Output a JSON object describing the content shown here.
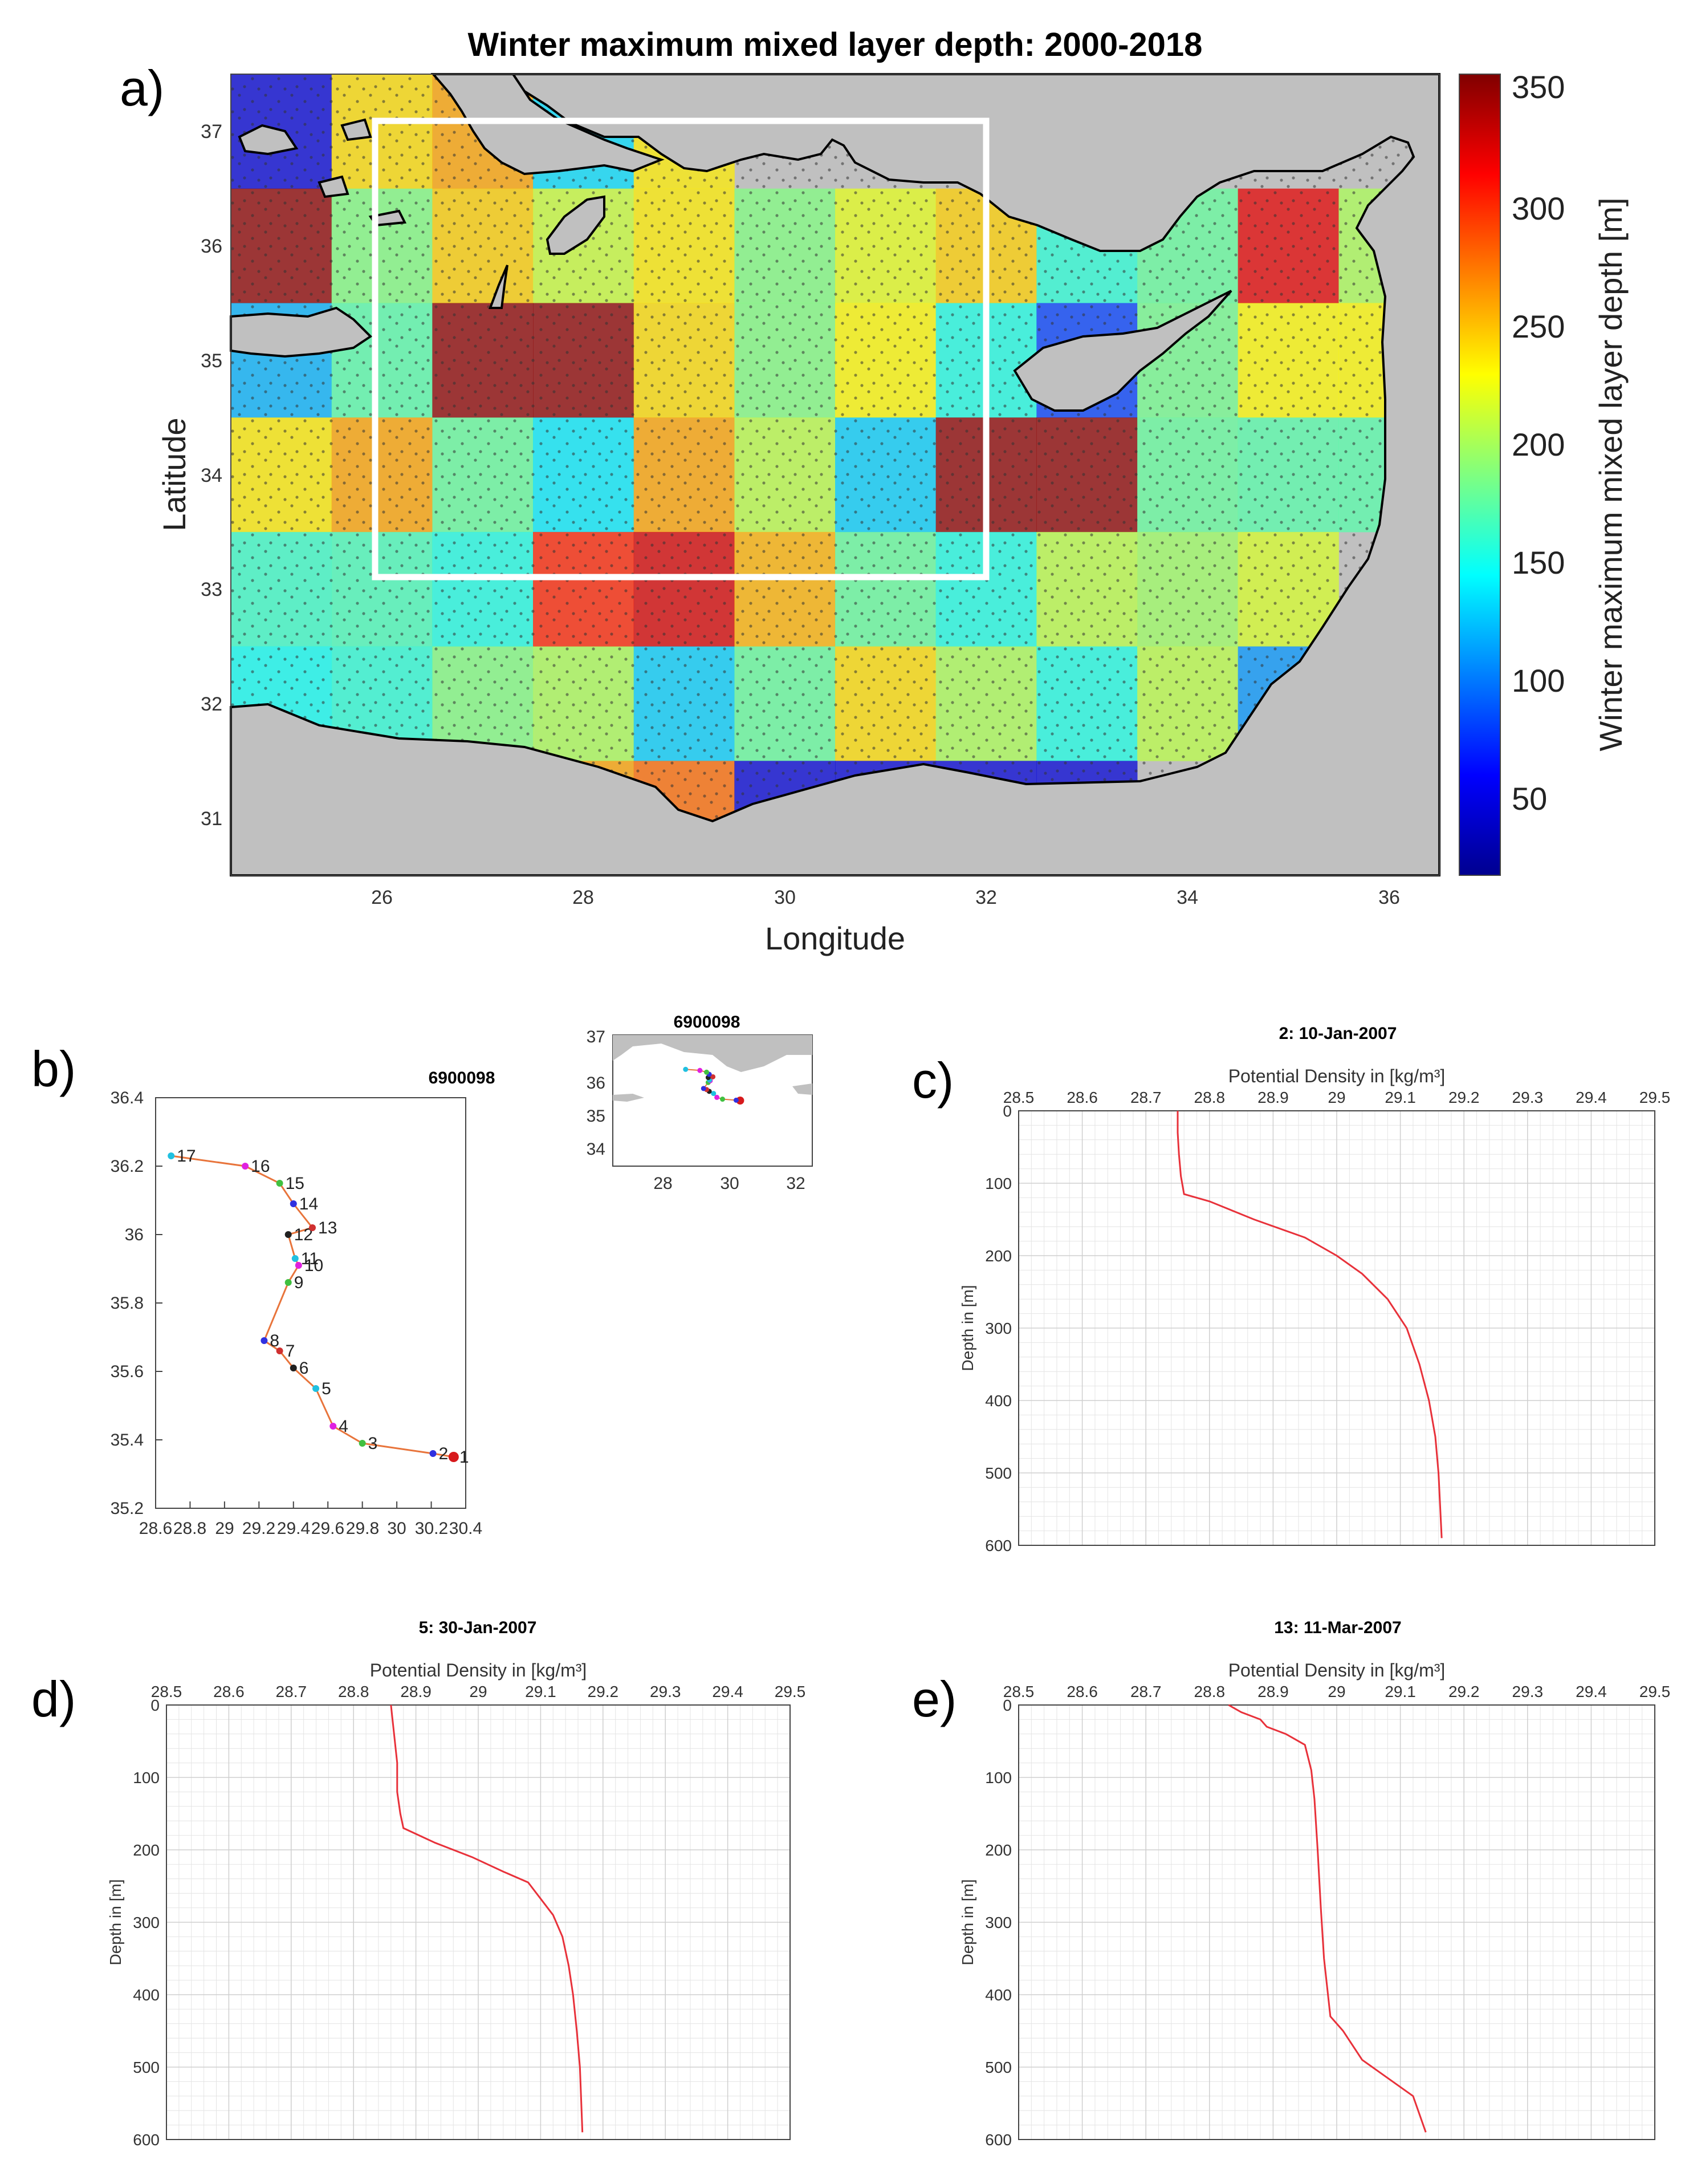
{
  "panel_a": {
    "label": "a)",
    "title": "Winter maximum mixed layer depth:   2000-2018",
    "xlabel": "Longitude",
    "ylabel": "Latitude",
    "colorbar_label": "Winter maximum mixed layer depth [m]",
    "colorbar_ticks": [
      "50",
      "100",
      "150",
      "200",
      "250",
      "300",
      "350"
    ],
    "xtick_labels": [
      "26",
      "28",
      "30",
      "32",
      "34",
      "36"
    ],
    "ytick_labels": [
      "31",
      "32",
      "33",
      "34",
      "35",
      "36",
      "37"
    ]
  },
  "panel_b": {
    "label": "b)",
    "title": "6900098",
    "inset_title": "6900098",
    "inset_xtick_labels": [
      "28",
      "30",
      "32"
    ],
    "inset_ytick_labels": [
      "34",
      "35",
      "36",
      "37"
    ],
    "xtick_labels": [
      "28.6",
      "28.8",
      "29",
      "29.2",
      "29.4",
      "29.6",
      "29.8",
      "30",
      "30.2",
      "30.4"
    ],
    "ytick_labels": [
      "35.2",
      "35.4",
      "35.6",
      "35.8",
      "36",
      "36.2",
      "36.4"
    ]
  },
  "profile_axes": {
    "xlabel": "Potential Density in [kg/m³]",
    "ylabel": "Depth in [m]",
    "xtick_labels": [
      "28.5",
      "28.6",
      "28.7",
      "28.8",
      "28.9",
      "29",
      "29.1",
      "29.2",
      "29.3",
      "29.4",
      "29.5"
    ],
    "ytick_labels": [
      "0",
      "100",
      "200",
      "300",
      "400",
      "500",
      "600"
    ]
  },
  "panel_c": {
    "label": "c)",
    "title": "2: 10-Jan-2007"
  },
  "panel_d": {
    "label": "d)",
    "title": "5: 30-Jan-2007"
  },
  "panel_e": {
    "label": "e)",
    "title": "13: 11-Mar-2007"
  },
  "chart_data": [
    {
      "type": "heatmap",
      "title": "Winter maximum mixed layer depth:   2000-2018",
      "xlabel": "Longitude",
      "ylabel": "Latitude",
      "xlim": [
        24.5,
        36.5
      ],
      "ylim": [
        30.5,
        37.5
      ],
      "clim": [
        0,
        350
      ],
      "colorbar_label": "Winter maximum mixed layer depth [m]",
      "lon_edges": [
        24.5,
        25.5,
        26.5,
        27.5,
        28.5,
        29.5,
        30.5,
        31.5,
        32.5,
        33.5,
        34.5,
        35.5,
        36.5
      ],
      "lat_edges": [
        37.5,
        36.5,
        35.5,
        34.5,
        33.5,
        32.5,
        31.5,
        30.5
      ],
      "cells": [
        [
          30,
          230,
          250,
          120,
          225,
          null,
          null,
          null,
          null,
          null,
          null,
          null
        ],
        [
          345,
          175,
          235,
          200,
          225,
          175,
          210,
          235,
          145,
          165,
          315,
          190
        ],
        [
          105,
          160,
          345,
          345,
          230,
          175,
          220,
          140,
          65,
          170,
          220,
          220
        ],
        [
          225,
          250,
          165,
          125,
          250,
          195,
          115,
          345,
          345,
          165,
          160,
          160
        ],
        [
          150,
          155,
          140,
          295,
          320,
          245,
          165,
          140,
          195,
          185,
          205,
          null
        ],
        [
          135,
          145,
          175,
          190,
          115,
          165,
          230,
          190,
          140,
          195,
          95,
          null
        ],
        [
          null,
          null,
          null,
          250,
          270,
          30,
          30,
          30,
          30,
          null,
          null,
          null
        ]
      ],
      "study_box": {
        "lon": [
          26,
          32
        ],
        "lat": [
          33.2,
          37.1
        ]
      }
    },
    {
      "type": "line",
      "title": "6900098",
      "xlim": [
        28.6,
        30.4
      ],
      "ylim": [
        35.2,
        36.4
      ],
      "points": [
        {
          "n": "1",
          "lon": 30.33,
          "lat": 35.35,
          "color": "#d7191c"
        },
        {
          "n": "2",
          "lon": 30.21,
          "lat": 35.36,
          "color": "#3030e0"
        },
        {
          "n": "3",
          "lon": 29.8,
          "lat": 35.39,
          "color": "#40c040"
        },
        {
          "n": "4",
          "lon": 29.63,
          "lat": 35.44,
          "color": "#e020e0"
        },
        {
          "n": "5",
          "lon": 29.53,
          "lat": 35.55,
          "color": "#20c0e0"
        },
        {
          "n": "6",
          "lon": 29.4,
          "lat": 35.61,
          "color": "#202020"
        },
        {
          "n": "7",
          "lon": 29.32,
          "lat": 35.66,
          "color": "#d03030"
        },
        {
          "n": "8",
          "lon": 29.23,
          "lat": 35.69,
          "color": "#3030e0"
        },
        {
          "n": "9",
          "lon": 29.37,
          "lat": 35.86,
          "color": "#40c040"
        },
        {
          "n": "10",
          "lon": 29.43,
          "lat": 35.91,
          "color": "#e020e0"
        },
        {
          "n": "11",
          "lon": 29.41,
          "lat": 35.93,
          "color": "#20c0e0"
        },
        {
          "n": "12",
          "lon": 29.37,
          "lat": 36.0,
          "color": "#202020"
        },
        {
          "n": "13",
          "lon": 29.51,
          "lat": 36.02,
          "color": "#d03030"
        },
        {
          "n": "14",
          "lon": 29.4,
          "lat": 36.09,
          "color": "#3030e0"
        },
        {
          "n": "15",
          "lon": 29.32,
          "lat": 36.15,
          "color": "#40c040"
        },
        {
          "n": "16",
          "lon": 29.12,
          "lat": 36.2,
          "color": "#e020e0"
        },
        {
          "n": "17",
          "lon": 28.69,
          "lat": 36.23,
          "color": "#20c0e0"
        }
      ]
    },
    {
      "type": "line",
      "title": "2: 10-Jan-2007",
      "xlabel": "Potential Density in [kg/m³]",
      "ylabel": "Depth in [m]",
      "xlim": [
        28.5,
        29.5
      ],
      "ylim": [
        600,
        0
      ],
      "x": [
        28.75,
        28.75,
        28.752,
        28.755,
        28.76,
        28.8,
        28.87,
        28.95,
        29.0,
        29.04,
        29.08,
        29.11,
        29.13,
        29.145,
        29.155,
        29.16,
        29.165
      ],
      "y": [
        0,
        30,
        60,
        90,
        115,
        125,
        150,
        175,
        200,
        225,
        260,
        300,
        350,
        400,
        450,
        500,
        590
      ]
    },
    {
      "type": "line",
      "title": "5: 30-Jan-2007",
      "xlabel": "Potential Density in [kg/m³]",
      "ylabel": "Depth in [m]",
      "xlim": [
        28.5,
        29.5
      ],
      "ylim": [
        600,
        0
      ],
      "x": [
        28.86,
        28.865,
        28.87,
        28.87,
        28.875,
        28.88,
        28.93,
        28.99,
        29.04,
        29.08,
        29.12,
        29.135,
        29.145,
        29.152,
        29.158,
        29.163,
        29.167
      ],
      "y": [
        0,
        40,
        80,
        120,
        150,
        170,
        190,
        210,
        230,
        245,
        290,
        320,
        360,
        400,
        450,
        500,
        590
      ]
    },
    {
      "type": "line",
      "title": "13: 11-Mar-2007",
      "xlabel": "Potential Density in [kg/m³]",
      "ylabel": "Depth in [m]",
      "xlim": [
        28.5,
        29.5
      ],
      "ylim": [
        600,
        0
      ],
      "x": [
        28.83,
        28.85,
        28.88,
        28.89,
        28.92,
        28.95,
        28.96,
        28.965,
        28.97,
        28.975,
        28.98,
        28.99,
        29.01,
        29.04,
        29.12,
        29.14
      ],
      "y": [
        0,
        10,
        20,
        30,
        40,
        55,
        90,
        130,
        200,
        280,
        350,
        430,
        450,
        490,
        540,
        590
      ]
    }
  ]
}
